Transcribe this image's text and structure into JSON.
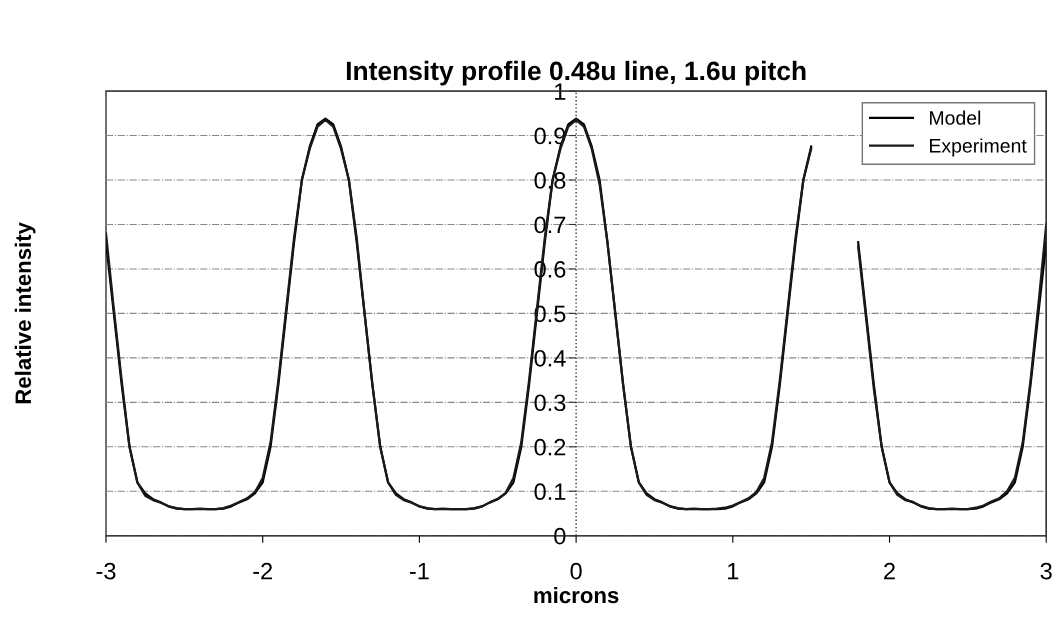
{
  "chart_data": {
    "type": "line",
    "title": "Intensity profile 0.48u line, 1.6u pitch",
    "xlabel": "microns",
    "ylabel": "Relative intensity",
    "x": [
      -3.0,
      -2.95,
      -2.9,
      -2.85,
      -2.8,
      -2.75,
      -2.7,
      -2.65,
      -2.6,
      -2.55,
      -2.5,
      -2.45,
      -2.4,
      -2.35,
      -2.3,
      -2.25,
      -2.2,
      -2.15,
      -2.1,
      -2.05,
      -2.0,
      -1.95,
      -1.9,
      -1.85,
      -1.8,
      -1.75,
      -1.7,
      -1.65,
      -1.6,
      -1.55,
      -1.5,
      -1.45,
      -1.4,
      -1.35,
      -1.3,
      -1.25,
      -1.2,
      -1.15,
      -1.1,
      -1.05,
      -1.0,
      -0.95,
      -0.9,
      -0.85,
      -0.8,
      -0.75,
      -0.7,
      -0.65,
      -0.6,
      -0.55,
      -0.5,
      -0.45,
      -0.4,
      -0.35,
      -0.3,
      -0.25,
      -0.2,
      -0.15,
      -0.1,
      -0.05,
      0.0,
      0.05,
      0.1,
      0.15,
      0.2,
      0.25,
      0.3,
      0.35,
      0.4,
      0.45,
      0.5,
      0.55,
      0.6,
      0.65,
      0.7,
      0.75,
      0.8,
      0.85,
      0.9,
      0.95,
      1.0,
      1.05,
      1.1,
      1.15,
      1.2,
      1.25,
      1.3,
      1.35,
      1.4,
      1.45,
      1.5,
      1.55,
      1.6,
      1.65,
      1.7,
      1.75,
      1.8,
      1.85,
      1.9,
      1.95,
      2.0,
      2.05,
      2.1,
      2.15,
      2.2,
      2.25,
      2.3,
      2.35,
      2.4,
      2.45,
      2.5,
      2.55,
      2.6,
      2.65,
      2.7,
      2.75,
      2.8,
      2.85,
      2.9,
      2.95,
      3.0
    ],
    "series": [
      {
        "name": "Model",
        "color": "#000000",
        "values": [
          0.66,
          0.5,
          0.34,
          0.2,
          0.12,
          0.095,
          0.082,
          0.075,
          0.066,
          0.061,
          0.06,
          0.06,
          0.06,
          0.06,
          0.06,
          0.061,
          0.066,
          0.075,
          0.082,
          0.095,
          0.12,
          0.2,
          0.34,
          0.5,
          0.66,
          0.8,
          0.875,
          0.925,
          0.938,
          0.925,
          0.875,
          0.8,
          0.66,
          0.5,
          0.34,
          0.2,
          0.12,
          0.095,
          0.082,
          0.075,
          0.066,
          0.061,
          0.06,
          0.06,
          0.06,
          0.06,
          0.06,
          0.061,
          0.066,
          0.075,
          0.082,
          0.095,
          0.12,
          0.2,
          0.34,
          0.5,
          0.66,
          0.8,
          0.875,
          0.925,
          0.938,
          0.925,
          0.875,
          0.8,
          0.66,
          0.5,
          0.34,
          0.2,
          0.12,
          0.095,
          0.082,
          0.075,
          0.066,
          0.061,
          0.06,
          0.06,
          0.06,
          0.06,
          0.06,
          0.061,
          0.066,
          0.075,
          0.082,
          0.095,
          0.12,
          0.2,
          0.34,
          0.5,
          0.66,
          0.8,
          0.875,
          null,
          null,
          null,
          null,
          null,
          0.66,
          0.5,
          0.34,
          0.2,
          0.12,
          0.095,
          0.082,
          0.075,
          0.066,
          0.061,
          0.06,
          0.06,
          0.06,
          0.06,
          0.06,
          0.061,
          0.066,
          0.075,
          0.082,
          0.095,
          0.12,
          0.2,
          0.34,
          0.5,
          0.66
        ]
      },
      {
        "name": "Experiment",
        "color": "#1a1a1a",
        "values": [
          0.68,
          0.51,
          0.35,
          0.2,
          0.12,
          0.09,
          0.08,
          0.074,
          0.066,
          0.062,
          0.06,
          0.06,
          0.061,
          0.06,
          0.06,
          0.062,
          0.068,
          0.076,
          0.084,
          0.098,
          0.13,
          0.21,
          0.35,
          0.51,
          0.67,
          0.8,
          0.87,
          0.92,
          0.935,
          0.92,
          0.87,
          0.8,
          0.67,
          0.5,
          0.34,
          0.2,
          0.12,
          0.092,
          0.08,
          0.074,
          0.066,
          0.062,
          0.06,
          0.061,
          0.06,
          0.06,
          0.06,
          0.062,
          0.066,
          0.075,
          0.083,
          0.096,
          0.13,
          0.21,
          0.35,
          0.51,
          0.67,
          0.8,
          0.87,
          0.92,
          0.935,
          0.92,
          0.87,
          0.79,
          0.66,
          0.5,
          0.34,
          0.2,
          0.12,
          0.092,
          0.08,
          0.074,
          0.066,
          0.062,
          0.06,
          0.061,
          0.06,
          0.06,
          0.061,
          0.063,
          0.068,
          0.076,
          0.084,
          0.098,
          0.13,
          0.21,
          0.35,
          0.51,
          0.67,
          0.8,
          0.87,
          null,
          null,
          null,
          null,
          null,
          0.65,
          0.49,
          0.33,
          0.2,
          0.12,
          0.092,
          0.08,
          0.076,
          0.067,
          0.062,
          0.06,
          0.06,
          0.061,
          0.06,
          0.06,
          0.063,
          0.068,
          0.077,
          0.084,
          0.1,
          0.13,
          0.21,
          0.35,
          0.52,
          0.7
        ]
      }
    ],
    "xlim": [
      -3,
      3
    ],
    "xticks": [
      -3,
      -2,
      -1,
      0,
      1,
      2,
      3
    ],
    "ylim": [
      0,
      1
    ],
    "yticks": [
      0,
      0.1,
      0.2,
      0.3,
      0.4,
      0.5,
      0.6,
      0.7,
      0.8,
      0.9,
      1
    ],
    "ref_lines": [
      {
        "axis": "x",
        "value": 0,
        "line_style": "dotted",
        "color": "#333333"
      }
    ],
    "grid": "y",
    "legend": "top right",
    "marker": "none",
    "line_style": "solid"
  }
}
